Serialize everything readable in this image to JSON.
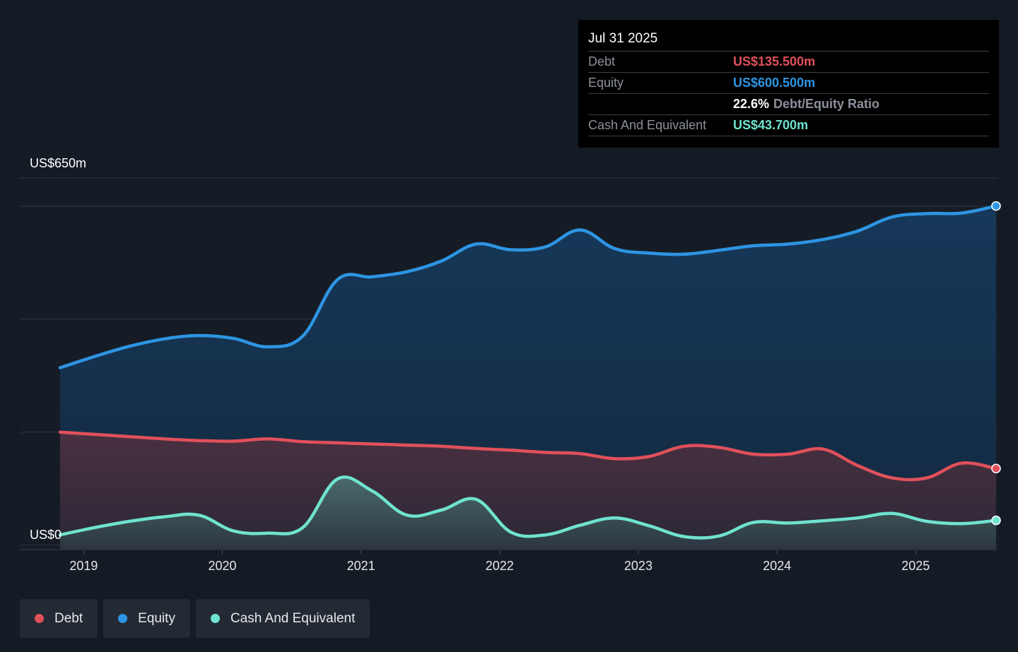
{
  "tooltip": {
    "date": "Jul 31 2025",
    "debt_label": "Debt",
    "debt_value": "US$135.500m",
    "equity_label": "Equity",
    "equity_value": "US$600.500m",
    "ratio_value": "22.6%",
    "ratio_label": "Debt/Equity Ratio",
    "cash_label": "Cash And Equivalent",
    "cash_value": "US$43.700m"
  },
  "legend": {
    "debt": "Debt",
    "equity": "Equity",
    "cash": "Cash And Equivalent"
  },
  "colors": {
    "debt": "#e0505b",
    "equity": "#2d95e3",
    "cash": "#6fe3cf",
    "background": "#151b24"
  },
  "chart_data": {
    "type": "area",
    "ytop_label": "US$650m",
    "ybottom_label": "US$0",
    "ylim": [
      -8,
      650
    ],
    "xlim": [
      2018.83,
      2025.58
    ],
    "x_ticks": [
      {
        "x": 2019,
        "label": "2019"
      },
      {
        "x": 2020,
        "label": "2020"
      },
      {
        "x": 2021,
        "label": "2021"
      },
      {
        "x": 2022,
        "label": "2022"
      },
      {
        "x": 2023,
        "label": "2023"
      },
      {
        "x": 2024,
        "label": "2024"
      },
      {
        "x": 2025,
        "label": "2025"
      }
    ],
    "gridlines": [
      0,
      200,
      400,
      600,
      650
    ],
    "series": [
      {
        "name": "Equity",
        "points": [
          [
            2018.83,
            314
          ],
          [
            2019.08,
            334
          ],
          [
            2019.33,
            352
          ],
          [
            2019.58,
            365
          ],
          [
            2019.83,
            371
          ],
          [
            2020.08,
            366
          ],
          [
            2020.33,
            351
          ],
          [
            2020.58,
            370
          ],
          [
            2020.83,
            470
          ],
          [
            2021.08,
            475
          ],
          [
            2021.33,
            484
          ],
          [
            2021.58,
            503
          ],
          [
            2021.83,
            533
          ],
          [
            2022.08,
            523
          ],
          [
            2022.33,
            528
          ],
          [
            2022.58,
            558
          ],
          [
            2022.83,
            525
          ],
          [
            2023.08,
            517
          ],
          [
            2023.33,
            515
          ],
          [
            2023.58,
            522
          ],
          [
            2023.83,
            530
          ],
          [
            2024.08,
            533
          ],
          [
            2024.33,
            541
          ],
          [
            2024.58,
            556
          ],
          [
            2024.83,
            581
          ],
          [
            2025.08,
            587
          ],
          [
            2025.33,
            588
          ],
          [
            2025.58,
            600.5
          ]
        ]
      },
      {
        "name": "Debt",
        "points": [
          [
            2018.83,
            200
          ],
          [
            2019.08,
            196
          ],
          [
            2019.33,
            192
          ],
          [
            2019.58,
            188
          ],
          [
            2019.83,
            185
          ],
          [
            2020.08,
            184
          ],
          [
            2020.33,
            188
          ],
          [
            2020.58,
            183
          ],
          [
            2020.83,
            181
          ],
          [
            2021.08,
            179
          ],
          [
            2021.33,
            177
          ],
          [
            2021.58,
            175
          ],
          [
            2021.83,
            171
          ],
          [
            2022.08,
            168
          ],
          [
            2022.33,
            164
          ],
          [
            2022.58,
            162
          ],
          [
            2022.83,
            153
          ],
          [
            2023.08,
            157
          ],
          [
            2023.33,
            175
          ],
          [
            2023.58,
            173
          ],
          [
            2023.83,
            161
          ],
          [
            2024.08,
            161
          ],
          [
            2024.33,
            170
          ],
          [
            2024.58,
            141
          ],
          [
            2024.83,
            119
          ],
          [
            2025.08,
            119
          ],
          [
            2025.33,
            145
          ],
          [
            2025.58,
            135.5
          ]
        ]
      },
      {
        "name": "Cash And Equivalent",
        "points": [
          [
            2018.83,
            18
          ],
          [
            2019.08,
            31
          ],
          [
            2019.33,
            42
          ],
          [
            2019.58,
            50
          ],
          [
            2019.83,
            53
          ],
          [
            2020.08,
            25
          ],
          [
            2020.33,
            21
          ],
          [
            2020.58,
            31
          ],
          [
            2020.83,
            117
          ],
          [
            2021.08,
            96
          ],
          [
            2021.33,
            53
          ],
          [
            2021.58,
            62
          ],
          [
            2021.83,
            81
          ],
          [
            2022.08,
            23
          ],
          [
            2022.33,
            18
          ],
          [
            2022.58,
            35
          ],
          [
            2022.83,
            48
          ],
          [
            2023.08,
            34
          ],
          [
            2023.33,
            15
          ],
          [
            2023.58,
            16
          ],
          [
            2023.83,
            40
          ],
          [
            2024.08,
            39
          ],
          [
            2024.33,
            43
          ],
          [
            2024.58,
            48
          ],
          [
            2024.83,
            56
          ],
          [
            2025.08,
            42
          ],
          [
            2025.33,
            38
          ],
          [
            2025.58,
            43.7
          ]
        ]
      }
    ]
  }
}
